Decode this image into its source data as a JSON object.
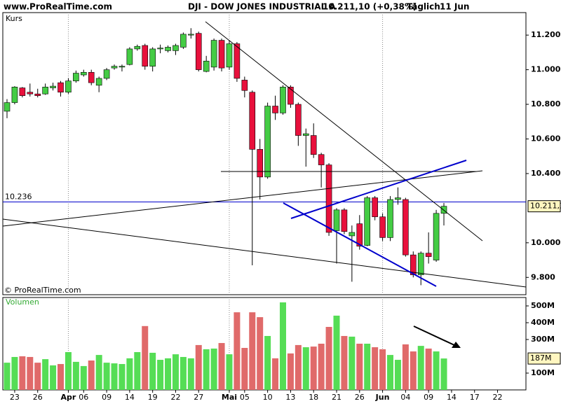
{
  "header": {
    "site": "www.ProRealTime.com",
    "instrument": "DJI - DOW JONES INDUSTRIAL A",
    "quote": "10.211,10 (+0,38%)",
    "period": "Täglich",
    "date": "11 Jun"
  },
  "chart_data": [
    {
      "type": "candlestick",
      "ylabel": "Kurs",
      "watermark": "© ProRealTime.com",
      "up_color": "#44cc44",
      "down_color": "#e8103c",
      "open": [
        10760,
        10810,
        10895,
        10870,
        10860,
        10860,
        10895,
        10925,
        10870,
        10935,
        10970,
        10985,
        10910,
        10950,
        11010,
        11015,
        11030,
        11120,
        11140,
        11020,
        11120,
        11110,
        11110,
        11130,
        11200,
        11210,
        10990,
        11015,
        11170,
        11015,
        11150,
        10940,
        10870,
        10540,
        10380,
        10790,
        10750,
        10900,
        10800,
        10620,
        10620,
        10510,
        10450,
        10070,
        10190,
        10040,
        10110,
        9985,
        10260,
        10150,
        10030,
        10250,
        10250,
        9930,
        9815,
        9940,
        9900,
        10170,
        null,
        null,
        null,
        null,
        null,
        null,
        null,
        null,
        null,
        null
      ],
      "high": [
        10830,
        10905,
        10900,
        10920,
        10890,
        10920,
        10925,
        10935,
        10950,
        10995,
        11000,
        11000,
        10960,
        11010,
        11030,
        11030,
        11130,
        11145,
        11150,
        11130,
        11145,
        11140,
        11150,
        11215,
        11240,
        11220,
        11080,
        11180,
        11180,
        11170,
        11160,
        10960,
        10880,
        10600,
        10810,
        10850,
        10910,
        10910,
        10810,
        10660,
        10690,
        10520,
        10460,
        10200,
        10200,
        10100,
        10160,
        10270,
        10270,
        10170,
        10270,
        10320,
        10260,
        9950,
        9950,
        10060,
        10190,
        10230,
        null,
        null,
        null,
        null,
        null,
        null,
        null,
        null,
        null,
        null
      ],
      "low": [
        10720,
        10800,
        10840,
        10845,
        10840,
        10855,
        10880,
        10845,
        10860,
        10925,
        10960,
        10910,
        10870,
        10940,
        11000,
        10990,
        11025,
        11110,
        11000,
        10990,
        11095,
        11100,
        11085,
        11120,
        11180,
        10990,
        10985,
        10995,
        10990,
        11000,
        10930,
        10840,
        9870,
        10250,
        10370,
        10710,
        10740,
        10780,
        10560,
        10440,
        10490,
        10320,
        10040,
        9880,
        10050,
        9775,
        9960,
        9980,
        10130,
        10010,
        10010,
        10220,
        9920,
        9800,
        9755,
        9880,
        9890,
        10100,
        null,
        null,
        null,
        null,
        null,
        null,
        null,
        null,
        null,
        null
      ],
      "close": [
        10810,
        10900,
        10850,
        10860,
        10850,
        10900,
        10905,
        10870,
        10935,
        10980,
        10985,
        10925,
        10950,
        11000,
        11020,
        11020,
        11120,
        11135,
        11020,
        11120,
        11125,
        11130,
        11140,
        11205,
        11205,
        11000,
        11050,
        11170,
        11010,
        11150,
        10950,
        10880,
        10540,
        10380,
        10790,
        10750,
        10900,
        10800,
        10620,
        10630,
        10510,
        10450,
        10060,
        10190,
        10065,
        10060,
        9980,
        10260,
        10150,
        10030,
        10250,
        10260,
        9930,
        9815,
        9940,
        9920,
        10170,
        10211.1,
        null,
        null,
        null,
        null,
        null,
        null,
        null,
        null,
        null,
        null
      ],
      "ylim": [
        9700,
        11330
      ],
      "yticks": [
        {
          "value": 9800,
          "label": "9.800"
        },
        {
          "value": 10000,
          "label": "10.000"
        },
        {
          "value": 10400,
          "label": "10.400"
        },
        {
          "value": 10600,
          "label": "10.600"
        },
        {
          "value": 10800,
          "label": "10.800"
        },
        {
          "value": 11000,
          "label": "11.000"
        },
        {
          "value": 11200,
          "label": "11.200"
        }
      ],
      "reference_line": {
        "value": 10236,
        "label": "10.236",
        "color": "#0000cc"
      },
      "last_value": {
        "value": 10211.1,
        "label": "10.211,1"
      }
    },
    {
      "type": "bar",
      "ylabel": "Volumen",
      "up_color": "#55dd55",
      "down_color": "#e06a6a",
      "categories": [
        null,
        "23",
        null,
        null,
        "26",
        null,
        null,
        null,
        "Apr",
        null,
        "06",
        null,
        null,
        "09",
        null,
        null,
        "14",
        null,
        null,
        "19",
        null,
        null,
        "22",
        null,
        null,
        "27",
        null,
        null,
        null,
        "Mai",
        null,
        "05",
        null,
        null,
        "10",
        null,
        null,
        "13",
        null,
        null,
        "18",
        null,
        null,
        "21",
        null,
        null,
        "26",
        null,
        null,
        "Jun",
        null,
        null,
        "04",
        null,
        null,
        "09",
        null,
        null,
        "14",
        null,
        null,
        "17",
        null,
        null,
        "22",
        null,
        null,
        null
      ],
      "values": [
        162000000,
        196000000,
        200000000,
        196000000,
        162000000,
        183000000,
        146000000,
        154000000,
        225000000,
        167000000,
        142000000,
        175000000,
        208000000,
        162000000,
        158000000,
        154000000,
        188000000,
        225000000,
        380000000,
        221000000,
        179000000,
        188000000,
        212000000,
        196000000,
        188000000,
        267000000,
        242000000,
        246000000,
        279000000,
        212000000,
        462000000,
        250000000,
        462000000,
        433000000,
        321000000,
        188000000,
        521000000,
        217000000,
        267000000,
        254000000,
        258000000,
        275000000,
        375000000,
        442000000,
        321000000,
        317000000,
        275000000,
        275000000,
        254000000,
        242000000,
        208000000,
        179000000,
        271000000,
        229000000,
        262000000,
        246000000,
        229000000,
        187000000,
        null,
        null,
        null,
        null,
        null,
        null,
        null,
        null,
        null,
        null
      ],
      "ylim": [
        0,
        550000000
      ],
      "yticks": [
        {
          "value": 100000000,
          "label": "100M"
        },
        {
          "value": 300000000,
          "label": "300M"
        },
        {
          "value": 400000000,
          "label": "400M"
        },
        {
          "value": 500000000,
          "label": "500M"
        }
      ],
      "last_value": {
        "value": 187000000,
        "label": "187M"
      }
    }
  ]
}
